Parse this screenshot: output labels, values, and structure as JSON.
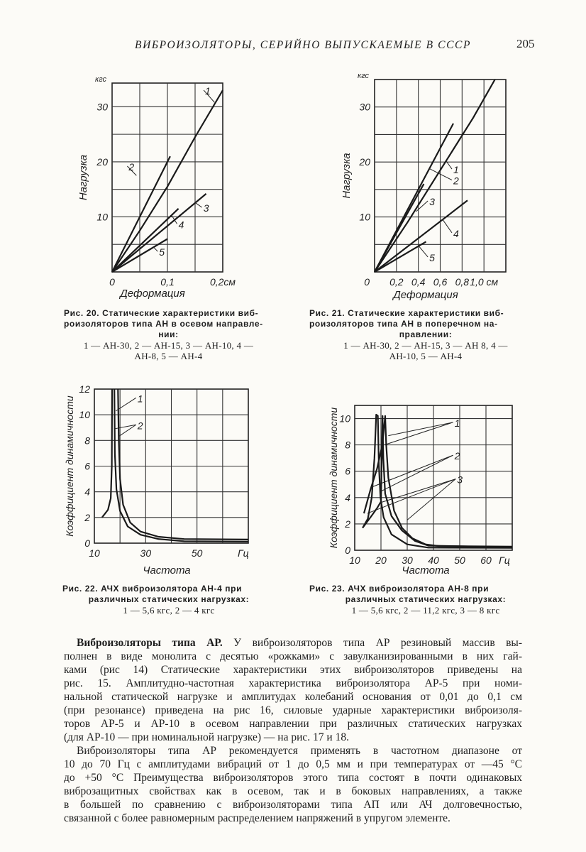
{
  "header": {
    "running_title": "ВИБРОИЗОЛЯТОРЫ, СЕРИЙНО ВЫПУСКАЕМЫЕ В СССР",
    "page_number": "205"
  },
  "figures": [
    {
      "caption_lines": [
        "Рис. 20. Статические характеристики виб-",
        "роизоляторов типа АН в осевом направле-",
        "нии:"
      ],
      "legend_lines": [
        "1 — АН-30, 2 — АН-15, 3 — АН-10, 4 —",
        "АН-8, 5 — АН-4"
      ]
    },
    {
      "caption_lines": [
        "Рис. 21. Статические характеристики виб-",
        "роизоляторов типа АН в поперечном на-",
        "правлении:"
      ],
      "legend_lines": [
        "1 — АН-30, 2 — АН-15, 3 — АН 8, 4 —",
        "АН-10, 5 — АН-4"
      ]
    },
    {
      "caption_lines": [
        "Рис. 22. АЧХ виброизолятора АН-4 при",
        "различных статических нагрузках:"
      ],
      "legend_lines": [
        "1 — 5,6 кгс, 2 — 4 кгс"
      ]
    },
    {
      "caption_lines": [
        "Рис. 23. АЧХ виброизолятора АН-8 при",
        "различных статических нагрузках:"
      ],
      "legend_lines": [
        "1 — 5,6 кгс, 2 — 11,2 кгс, 3 — 8 кгс"
      ]
    }
  ],
  "body": {
    "lead_bold": "Виброизоляторы типа АР.",
    "lines": [
      " У виброизоляторов типа АР резиновый массив вы-",
      "полнен в виде монолита с десятью «рожками» с завулканизированными в них гай-",
      "ками (рис 14) Статические характеристики этих виброизоляторов приведены на",
      "рис. 15. Амплитудно-частотная характеристика виброизолятора АР-5 при номи-",
      "нальной статической нагрузке и амплитудах колебаний основания от 0,01 до 0,1 см",
      "(при резонансе) приведена на рис 16, силовые ударные характеристики виброизоля-",
      "торов АР-5 и АР-10 в осевом направлении при различных статических нагрузках",
      "(для АР-10 — при номинальной нагрузке) — на рис. 17 и 18.",
      "Виброизоляторы типа АР рекомендуется применять в частотном диапазоне от",
      "10 до 70 Гц с амплитудами вибраций от 1 до 0,5 мм и при температурах от —45 °С",
      "до +50 °С Преимущества виброизоляторов этого типа состоят в почти одинаковых",
      "виброзащитных свойствах как в осевом, так и в боковых направлениях, а также",
      "в большей по сравнению с виброизоляторами типа АП или АЧ долговечностью,",
      "связанной с более равномерным распределением напряжений в упругом элементе."
    ]
  },
  "chart_data": [
    {
      "type": "line",
      "title": "Рис. 20",
      "xlabel": "Деформация",
      "ylabel": "Нагрузка",
      "y_unit": "кгс",
      "xlim": [
        0,
        0.2
      ],
      "ylim": [
        0,
        34.3
      ],
      "grid": true,
      "grid_step": [
        0.05,
        5
      ],
      "xticks": [
        {
          "v": 0,
          "t": "0"
        },
        {
          "v": 0.1,
          "t": "0,1"
        },
        {
          "v": 0.2,
          "t": "0,2см"
        }
      ],
      "yticks": [
        {
          "v": 10,
          "t": "10"
        },
        {
          "v": 20,
          "t": "20"
        },
        {
          "v": 30,
          "t": "30"
        }
      ],
      "series": [
        {
          "name": "1",
          "points": [
            [
              0,
              0
            ],
            [
              0.05,
              7.5
            ],
            [
              0.1,
              15.5
            ],
            [
              0.15,
              24.5
            ],
            [
              0.2,
              33
            ]
          ],
          "label_at": [
            0.168,
            32.5
          ],
          "leader_to": [
            [
              0.185,
              30.8
            ]
          ]
        },
        {
          "name": "2",
          "points": [
            [
              0,
              0
            ],
            [
              0.105,
              21
            ]
          ],
          "label_at": [
            0.03,
            18.7
          ],
          "leader_to": [
            [
              0.044,
              17.5
            ]
          ]
        },
        {
          "name": "3",
          "points": [
            [
              0,
              0
            ],
            [
              0.17,
              14.2
            ]
          ],
          "label_at": [
            0.165,
            11.2
          ],
          "leader_to": [
            [
              0.15,
              12.6
            ]
          ]
        },
        {
          "name": "4",
          "points": [
            [
              0,
              0
            ],
            [
              0.12,
              11.5
            ]
          ],
          "label_at": [
            0.12,
            8.2
          ],
          "leader_to": [
            [
              0.108,
              10.2
            ]
          ]
        },
        {
          "name": "5",
          "points": [
            [
              0,
              0
            ],
            [
              0.1,
              6
            ]
          ],
          "label_at": [
            0.085,
            3.2
          ],
          "leader_to": [
            [
              0.074,
              4.6
            ]
          ]
        }
      ]
    },
    {
      "type": "line",
      "title": "Рис. 21",
      "xlabel": "Деформация",
      "ylabel": "Нагрузка",
      "y_unit": "кгс",
      "xlim": [
        0,
        1.2
      ],
      "ylim": [
        0,
        35
      ],
      "grid": true,
      "grid_step": [
        0.2,
        5
      ],
      "xticks": [
        {
          "v": -0.07,
          "t": "0"
        },
        {
          "v": 0.2,
          "t": "0,2"
        },
        {
          "v": 0.4,
          "t": "0,4"
        },
        {
          "v": 0.6,
          "t": "0,6"
        },
        {
          "v": 0.8,
          "t": "0,8"
        },
        {
          "v": 1.0,
          "t": "1,0 см"
        }
      ],
      "yticks": [
        {
          "v": 10,
          "t": "10"
        },
        {
          "v": 20,
          "t": "20"
        },
        {
          "v": 30,
          "t": "30"
        }
      ],
      "series": [
        {
          "name": "1",
          "points": [
            [
              0,
              0
            ],
            [
              0.3,
              9
            ],
            [
              0.6,
              18.5
            ],
            [
              0.9,
              28
            ],
            [
              1.1,
              35
            ]
          ],
          "label_at": [
            0.72,
            18.2
          ],
          "leader_to": [
            [
              0.65,
              20.3
            ]
          ]
        },
        {
          "name": "2",
          "points": [
            [
              0,
              0
            ],
            [
              0.72,
              27
            ]
          ],
          "label_at": [
            0.72,
            16.2
          ],
          "leader_to": [
            [
              0.5,
              18.8
            ]
          ]
        },
        {
          "name": "3",
          "points": [
            [
              0,
              0
            ],
            [
              0.45,
              16
            ]
          ],
          "label_at": [
            0.5,
            12.4
          ],
          "leader_to": [
            [
              0.38,
              11
            ]
          ]
        },
        {
          "name": "4",
          "points": [
            [
              0,
              0
            ],
            [
              0.85,
              13
            ]
          ],
          "label_at": [
            0.72,
            6.6
          ],
          "leader_to": [
            [
              0.62,
              9.6
            ]
          ]
        },
        {
          "name": "5",
          "points": [
            [
              0,
              0
            ],
            [
              0.47,
              5.5
            ]
          ],
          "label_at": [
            0.5,
            2.2
          ],
          "leader_to": [
            [
              0.4,
              4.8
            ]
          ]
        }
      ]
    },
    {
      "type": "line",
      "title": "Рис. 22",
      "xlabel": "Частота",
      "ylabel": "Коэффициент динамичности",
      "x_unit": "Гц",
      "xlim": [
        10,
        70
      ],
      "ylim": [
        0,
        12
      ],
      "grid": true,
      "grid_step": [
        10,
        2
      ],
      "xticks": [
        {
          "v": 10,
          "t": "10"
        },
        {
          "v": 30,
          "t": "30"
        },
        {
          "v": 50,
          "t": "50"
        },
        {
          "v": 68,
          "t": "Гц"
        }
      ],
      "yticks": [
        {
          "v": 0,
          "t": "0"
        },
        {
          "v": 2,
          "t": "2"
        },
        {
          "v": 4,
          "t": "4"
        },
        {
          "v": 6,
          "t": "6"
        },
        {
          "v": 8,
          "t": "8"
        },
        {
          "v": 10,
          "t": "10"
        },
        {
          "v": 12,
          "t": "12"
        }
      ],
      "series": [
        {
          "name": "1",
          "points": [
            [
              13,
              2
            ],
            [
              15.3,
              2.6
            ],
            [
              16.4,
              3.5
            ],
            [
              16.8,
              6
            ],
            [
              16.9,
              12
            ]
          ],
          "points2": [
            [
              19.2,
              12
            ],
            [
              19.5,
              8
            ],
            [
              20,
              5
            ],
            [
              21.2,
              3
            ],
            [
              24,
              1.6
            ],
            [
              28,
              0.9
            ],
            [
              35,
              0.5
            ],
            [
              45,
              0.32
            ],
            [
              70,
              0.28
            ]
          ],
          "label_at": [
            26.8,
            11.1
          ],
          "leader_to": [
            [
              18.4,
              10.3
            ]
          ]
        },
        {
          "name": "2",
          "points": [
            [
              17.8,
              12
            ],
            [
              18,
              7
            ],
            [
              18.6,
              4.2
            ],
            [
              20,
              2.5
            ],
            [
              23,
              1.3
            ],
            [
              28,
              0.65
            ],
            [
              35,
              0.32
            ],
            [
              45,
              0.15
            ],
            [
              70,
              0.12
            ]
          ],
          "label_at": [
            26.8,
            9.0
          ],
          "leader_to": [
            [
              17.6,
              8.9
            ],
            [
              19.4,
              8.3
            ]
          ]
        }
      ]
    },
    {
      "type": "line",
      "title": "Рис. 23",
      "xlabel": "Частота",
      "ylabel": "Коэффициент динамичности",
      "x_unit": "Гц",
      "xlim": [
        10,
        70
      ],
      "ylim": [
        0,
        11
      ],
      "grid": true,
      "grid_step": [
        10,
        2
      ],
      "xticks": [
        {
          "v": 10,
          "t": "10"
        },
        {
          "v": 20,
          "t": "20"
        },
        {
          "v": 30,
          "t": "30"
        },
        {
          "v": 40,
          "t": "40"
        },
        {
          "v": 50,
          "t": "50"
        },
        {
          "v": 60,
          "t": "60"
        },
        {
          "v": 67,
          "t": "Гц"
        }
      ],
      "yticks": [
        {
          "v": 0,
          "t": "0"
        },
        {
          "v": 2,
          "t": "2"
        },
        {
          "v": 4,
          "t": "4"
        },
        {
          "v": 6,
          "t": "6"
        },
        {
          "v": 8,
          "t": "8"
        },
        {
          "v": 10,
          "t": "10"
        }
      ],
      "series": [
        {
          "name": "1",
          "points": [
            [
              13,
              1.7
            ],
            [
              15,
              2.4
            ],
            [
              16.5,
              4
            ],
            [
              17.5,
              7
            ],
            [
              18.2,
              10.3
            ],
            [
              18.8,
              10.2
            ],
            [
              19.2,
              6.5
            ],
            [
              19.8,
              4
            ],
            [
              21,
              2.5
            ],
            [
              24,
              1.2
            ],
            [
              30,
              0.45
            ],
            [
              38,
              0.2
            ],
            [
              70,
              0.18
            ]
          ],
          "label_at": [
            48,
            9.5
          ],
          "leader_to": [
            [
              22.8,
              8.7
            ],
            [
              21.3,
              8.0
            ]
          ]
        },
        {
          "name": "2",
          "points": [
            [
              13.5,
              2.8
            ],
            [
              16,
              4.6
            ],
            [
              18.5,
              6.2
            ],
            [
              20.5,
              8
            ],
            [
              21.6,
              10.2
            ],
            [
              22,
              8
            ],
            [
              22.8,
              5.5
            ],
            [
              25,
              3
            ],
            [
              28,
              1.7
            ],
            [
              32,
              0.9
            ],
            [
              37,
              0.45
            ],
            [
              42,
              0.32
            ],
            [
              70,
              0.28
            ]
          ],
          "label_at": [
            48,
            7.0
          ],
          "leader_to": [
            [
              16.5,
              4.8
            ],
            [
              20.2,
              4.5
            ]
          ]
        },
        {
          "name": "3",
          "points": [
            [
              13,
              1.7
            ],
            [
              16,
              2.5
            ],
            [
              18.5,
              3.2
            ],
            [
              20,
              3.7
            ],
            [
              20.6,
              10.2
            ],
            [
              20.9,
              7
            ],
            [
              21.6,
              4.3
            ],
            [
              24,
              2.6
            ],
            [
              28,
              1.5
            ],
            [
              33,
              0.7
            ],
            [
              38,
              0.35
            ],
            [
              70,
              0.22
            ]
          ],
          "label_at": [
            49,
            5.2
          ],
          "leader_to": [
            [
              14.8,
              2.8
            ],
            [
              19.5,
              3.6
            ],
            [
              30,
              2.3
            ]
          ]
        }
      ]
    }
  ]
}
